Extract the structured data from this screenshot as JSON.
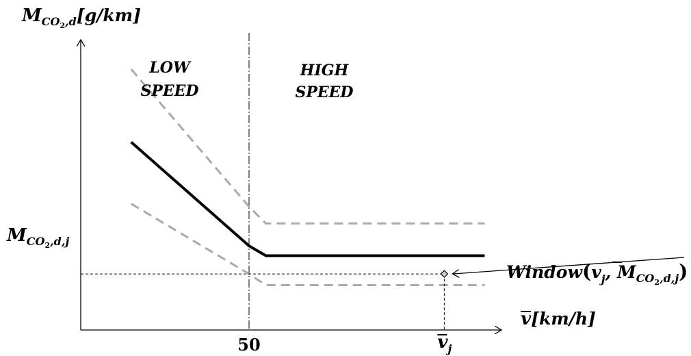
{
  "chart_data": {
    "type": "line",
    "title": "",
    "y_axis": {
      "label_main": "M",
      "label_sub": "CO",
      "label_sub2": "2",
      "label_sub3": ",d",
      "label_unit": "[g/km]"
    },
    "x_axis": {
      "label_main": "v",
      "label_unit": "[km/h]"
    },
    "x_ticks": [
      {
        "label": "50"
      },
      {
        "label": "v",
        "sub": "j"
      }
    ],
    "regions": [
      {
        "line1": "LOW",
        "line2": "SPEED"
      },
      {
        "line1": "HIGH",
        "line2": "SPEED"
      }
    ],
    "threshold_x": 50,
    "y_ref": {
      "label_main": "M",
      "label_sub": "CO",
      "label_sub2": "2",
      "label_sub3": ",d,j"
    },
    "annotation": {
      "text_main": "Window",
      "text_args": [
        "v",
        "j",
        "M",
        "CO",
        "2",
        ",d,j"
      ]
    },
    "series": [
      {
        "style": "solid",
        "color": "#000000",
        "points": [
          [
            15,
            6.7
          ],
          [
            50,
            3.0
          ],
          [
            55,
            2.65
          ],
          [
            120,
            2.65
          ]
        ]
      },
      {
        "style": "dashed",
        "color": "#aaaaaa",
        "points": [
          [
            15,
            9.3
          ],
          [
            50,
            4.4
          ],
          [
            55,
            3.8
          ],
          [
            120,
            3.8
          ]
        ]
      },
      {
        "style": "dashed",
        "color": "#aaaaaa",
        "points": [
          [
            15,
            4.5
          ],
          [
            50,
            2.0
          ],
          [
            55,
            1.6
          ],
          [
            120,
            1.6
          ]
        ]
      }
    ],
    "point": {
      "x": 108,
      "y": 2.0
    },
    "xlim": [
      0,
      125
    ],
    "ylim": [
      0,
      10.5
    ]
  }
}
